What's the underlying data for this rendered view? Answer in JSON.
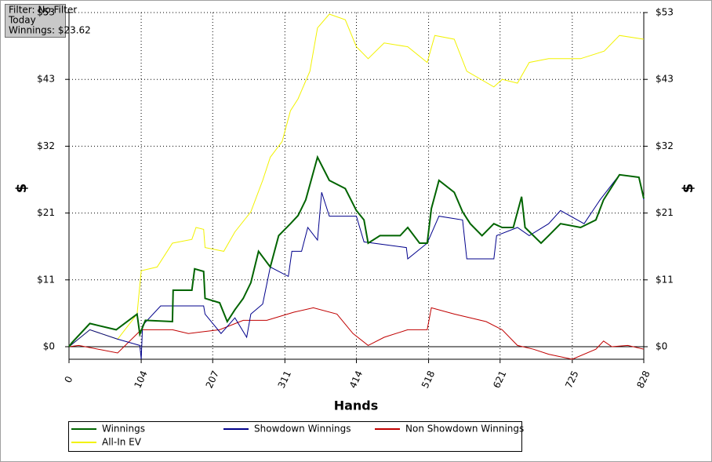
{
  "chart_data": {
    "type": "line",
    "filter_box": [
      "Filter: No Filter",
      "Today",
      "Winnings: $23.62"
    ],
    "x_label": "Hands",
    "y_label": "$",
    "y2_label": "$",
    "xlim": [
      0,
      828
    ],
    "xticks": [
      0,
      104,
      207,
      311,
      414,
      518,
      621,
      725,
      828
    ],
    "ylim": [
      -2,
      53.25
    ],
    "yticks": [
      {
        "value": 0,
        "label": "$0"
      },
      {
        "value": 10.65,
        "label": "$11"
      },
      {
        "value": 21.3,
        "label": "$21"
      },
      {
        "value": 31.95,
        "label": "$32"
      },
      {
        "value": 42.6,
        "label": "$43"
      },
      {
        "value": 53.25,
        "label": "$53"
      }
    ],
    "grid": true,
    "series": [
      {
        "name": "Winnings",
        "color": "#006400",
        "x": [
          0,
          4,
          30,
          68,
          98,
          102,
          110,
          149,
          150,
          177,
          181,
          194,
          196,
          217,
          228,
          239,
          251,
          262,
          273,
          290,
          302,
          319,
          330,
          341,
          358,
          375,
          398,
          414,
          425,
          431,
          448,
          477,
          488,
          505,
          516,
          522,
          533,
          555,
          567,
          578,
          595,
          612,
          624,
          640,
          652,
          657,
          680,
          691,
          708,
          737,
          759,
          770,
          793,
          821,
          828
        ],
        "values": [
          0,
          0.6,
          3.7,
          2.7,
          5.2,
          2,
          4.2,
          4,
          9,
          9,
          12.4,
          12,
          7.7,
          7,
          4,
          5.9,
          7.7,
          10.2,
          15.2,
          12.7,
          17.7,
          19.6,
          20.9,
          23.4,
          30.2,
          26.5,
          25.2,
          21.7,
          20.2,
          16.5,
          17.7,
          17.7,
          19,
          16.5,
          16.5,
          22,
          26.5,
          24.6,
          21.5,
          19.6,
          17.7,
          19.6,
          19,
          19,
          23.9,
          19,
          16.5,
          17.7,
          19.6,
          19,
          20.2,
          23.4,
          27.4,
          27,
          23.62
        ]
      },
      {
        "name": "Showdown Winnings",
        "color": "#00008b",
        "x": [
          0,
          30,
          70,
          102,
          104,
          106,
          132,
          194,
          196,
          219,
          239,
          256,
          262,
          279,
          290,
          316,
          321,
          335,
          344,
          358,
          364,
          375,
          414,
          425,
          486,
          488,
          516,
          533,
          567,
          573,
          612,
          616,
          646,
          663,
          691,
          708,
          742,
          765,
          793,
          821,
          828
        ],
        "values": [
          0,
          2.7,
          1.2,
          0.2,
          -2,
          3.4,
          6.5,
          6.5,
          5.2,
          2.1,
          4.6,
          1.5,
          5.2,
          6.8,
          12.7,
          11.2,
          15.2,
          15.2,
          19,
          17,
          24.6,
          20.8,
          20.8,
          16.7,
          15.8,
          14,
          16.5,
          20.8,
          20.2,
          14,
          14,
          17.7,
          19,
          17.7,
          19.6,
          21.7,
          19.6,
          23.4,
          27.4,
          27,
          23.4
        ]
      },
      {
        "name": "Non Showdown Winnings",
        "color": "#c00000",
        "x": [
          0,
          14,
          70,
          104,
          149,
          172,
          217,
          251,
          285,
          324,
          352,
          386,
          409,
          431,
          454,
          488,
          516,
          522,
          555,
          601,
          624,
          646,
          669,
          691,
          725,
          759,
          770,
          782,
          805,
          828
        ],
        "values": [
          0,
          0.2,
          -1,
          2.7,
          2.7,
          2.1,
          2.7,
          4.2,
          4.2,
          5.5,
          6.2,
          5.2,
          2.1,
          0.2,
          1.5,
          2.7,
          2.7,
          6.2,
          5.2,
          4,
          2.7,
          0.2,
          -0.4,
          -1.2,
          -2,
          -0.4,
          0.9,
          0,
          0.2,
          -0.4
        ]
      },
      {
        "name": "All-In EV",
        "color": "#f2f200",
        "x": [
          0,
          30,
          70,
          98,
          104,
          127,
          149,
          177,
          183,
          194,
          196,
          223,
          239,
          262,
          279,
          290,
          307,
          319,
          330,
          347,
          358,
          375,
          398,
          414,
          431,
          454,
          488,
          516,
          527,
          555,
          573,
          612,
          624,
          646,
          663,
          691,
          737,
          771,
          793,
          828
        ],
        "values": [
          0,
          2.7,
          1.2,
          5.2,
          12.1,
          12.7,
          16.5,
          17.1,
          19,
          18.7,
          15.8,
          15.2,
          18.3,
          21.5,
          26.5,
          30.2,
          32.7,
          37.6,
          39.5,
          43.9,
          50.8,
          53,
          52.1,
          47.8,
          45.9,
          48.4,
          47.8,
          45.3,
          49.6,
          49,
          43.9,
          41.4,
          42.6,
          42,
          45.3,
          45.9,
          45.9,
          47.1,
          49.6,
          49
        ]
      }
    ]
  }
}
